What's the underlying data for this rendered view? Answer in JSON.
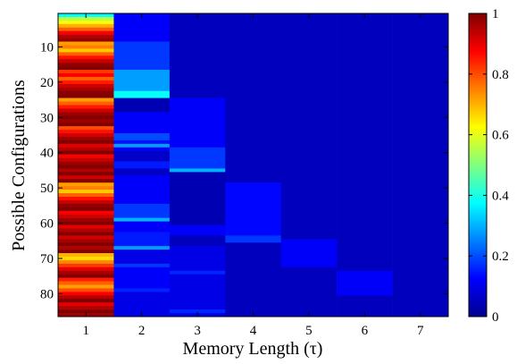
{
  "chart_data": {
    "type": "heatmap",
    "xlabel": "Memory Length (τ)",
    "ylabel": "Possible Configurations",
    "x_categories": [
      "1",
      "2",
      "3",
      "4",
      "5",
      "6",
      "7"
    ],
    "y_ticks": [
      "10",
      "20",
      "30",
      "40",
      "50",
      "60",
      "70",
      "80"
    ],
    "y_tick_values": [
      10,
      20,
      30,
      40,
      50,
      60,
      70,
      80
    ],
    "y_range": [
      0.5,
      86.5
    ],
    "n_rows": 86,
    "colorbar": {
      "range": [
        0,
        1
      ],
      "ticks": [
        "0",
        "0.2",
        "0.4",
        "0.6",
        "0.8",
        "1"
      ],
      "tick_values": [
        0,
        0.2,
        0.4,
        0.6,
        0.8,
        1
      ],
      "colormap": "jet"
    },
    "columns": [
      {
        "x": "1",
        "segments": [
          [
            1,
            1,
            0.38
          ],
          [
            2,
            2,
            0.55
          ],
          [
            3,
            3,
            0.62
          ],
          [
            4,
            4,
            0.7
          ],
          [
            5,
            5,
            0.78
          ],
          [
            6,
            6,
            0.88
          ],
          [
            7,
            7,
            0.95
          ],
          [
            8,
            8,
            0.98
          ],
          [
            9,
            9,
            0.72
          ],
          [
            10,
            10,
            0.75
          ],
          [
            11,
            11,
            0.68
          ],
          [
            12,
            12,
            0.78
          ],
          [
            13,
            13,
            0.86
          ],
          [
            14,
            14,
            0.93
          ],
          [
            15,
            15,
            0.98
          ],
          [
            16,
            16,
            1.0
          ],
          [
            17,
            17,
            0.82
          ],
          [
            18,
            18,
            0.88
          ],
          [
            19,
            19,
            0.78
          ],
          [
            20,
            20,
            0.85
          ],
          [
            21,
            21,
            0.92
          ],
          [
            22,
            22,
            0.96
          ],
          [
            23,
            23,
            0.99
          ],
          [
            24,
            24,
            1.0
          ],
          [
            25,
            25,
            0.72
          ],
          [
            26,
            26,
            0.78
          ],
          [
            27,
            27,
            0.85
          ],
          [
            28,
            28,
            0.92
          ],
          [
            29,
            29,
            0.97
          ],
          [
            30,
            30,
            1.0
          ],
          [
            31,
            31,
            0.97
          ],
          [
            32,
            32,
            1.0
          ],
          [
            33,
            33,
            0.8
          ],
          [
            34,
            34,
            0.86
          ],
          [
            35,
            35,
            0.92
          ],
          [
            36,
            36,
            0.97
          ],
          [
            37,
            37,
            1.0
          ],
          [
            38,
            38,
            0.9
          ],
          [
            39,
            39,
            0.95
          ],
          [
            40,
            40,
            1.0
          ],
          [
            41,
            41,
            0.88
          ],
          [
            42,
            42,
            0.93
          ],
          [
            43,
            43,
            0.97
          ],
          [
            44,
            44,
            1.0
          ],
          [
            45,
            45,
            0.95
          ],
          [
            46,
            46,
            1.0
          ],
          [
            47,
            47,
            0.92
          ],
          [
            48,
            48,
            1.0
          ],
          [
            49,
            49,
            0.72
          ],
          [
            50,
            50,
            0.75
          ],
          [
            51,
            51,
            0.68
          ],
          [
            52,
            52,
            0.78
          ],
          [
            53,
            53,
            0.86
          ],
          [
            54,
            54,
            0.93
          ],
          [
            55,
            55,
            0.98
          ],
          [
            56,
            56,
            1.0
          ],
          [
            57,
            57,
            0.88
          ],
          [
            58,
            58,
            0.92
          ],
          [
            59,
            59,
            0.97
          ],
          [
            60,
            60,
            1.0
          ],
          [
            61,
            61,
            0.9
          ],
          [
            62,
            62,
            0.95
          ],
          [
            63,
            63,
            1.0
          ],
          [
            64,
            64,
            0.92
          ],
          [
            65,
            65,
            0.96
          ],
          [
            66,
            66,
            1.0
          ],
          [
            67,
            67,
            0.95
          ],
          [
            68,
            68,
            1.0
          ],
          [
            69,
            69,
            0.7
          ],
          [
            70,
            70,
            0.66
          ],
          [
            71,
            71,
            0.74
          ],
          [
            72,
            72,
            0.82
          ],
          [
            73,
            73,
            0.9
          ],
          [
            74,
            74,
            0.96
          ],
          [
            75,
            75,
            1.0
          ],
          [
            76,
            76,
            0.85
          ],
          [
            77,
            77,
            0.78
          ],
          [
            78,
            78,
            0.72
          ],
          [
            79,
            79,
            0.8
          ],
          [
            80,
            80,
            0.88
          ],
          [
            81,
            81,
            0.95
          ],
          [
            82,
            82,
            1.0
          ],
          [
            83,
            83,
            0.9
          ],
          [
            84,
            84,
            0.95
          ],
          [
            85,
            85,
            1.0
          ],
          [
            86,
            86,
            0.97
          ]
        ]
      },
      {
        "x": "2",
        "segments": [
          [
            1,
            8,
            0.12
          ],
          [
            9,
            16,
            0.18
          ],
          [
            17,
            22,
            0.28
          ],
          [
            23,
            24,
            0.38
          ],
          [
            25,
            28,
            0.05
          ],
          [
            29,
            34,
            0.12
          ],
          [
            35,
            36,
            0.2
          ],
          [
            37,
            37,
            0.14
          ],
          [
            38,
            38,
            0.28
          ],
          [
            39,
            39,
            0.12
          ],
          [
            40,
            42,
            0.07
          ],
          [
            43,
            44,
            0.15
          ],
          [
            45,
            46,
            0.07
          ],
          [
            47,
            54,
            0.12
          ],
          [
            55,
            58,
            0.18
          ],
          [
            59,
            59,
            0.3
          ],
          [
            60,
            62,
            0.12
          ],
          [
            63,
            66,
            0.15
          ],
          [
            67,
            67,
            0.28
          ],
          [
            68,
            71,
            0.1
          ],
          [
            72,
            72,
            0.18
          ],
          [
            73,
            78,
            0.12
          ],
          [
            79,
            79,
            0.16
          ],
          [
            80,
            86,
            0.1
          ]
        ]
      },
      {
        "x": "3",
        "segments": [
          [
            1,
            24,
            0.06
          ],
          [
            25,
            38,
            0.12
          ],
          [
            39,
            44,
            0.18
          ],
          [
            45,
            45,
            0.3
          ],
          [
            46,
            60,
            0.05
          ],
          [
            61,
            63,
            0.12
          ],
          [
            64,
            66,
            0.06
          ],
          [
            67,
            73,
            0.1
          ],
          [
            74,
            74,
            0.16
          ],
          [
            75,
            84,
            0.1
          ],
          [
            85,
            85,
            0.16
          ],
          [
            86,
            86,
            0.1
          ]
        ]
      },
      {
        "x": "4",
        "segments": [
          [
            1,
            48,
            0.06
          ],
          [
            49,
            63,
            0.13
          ],
          [
            64,
            65,
            0.18
          ],
          [
            66,
            86,
            0.06
          ]
        ]
      },
      {
        "x": "5",
        "segments": [
          [
            1,
            64,
            0.06
          ],
          [
            65,
            72,
            0.12
          ],
          [
            73,
            86,
            0.06
          ]
        ]
      },
      {
        "x": "6",
        "segments": [
          [
            1,
            73,
            0.06
          ],
          [
            74,
            80,
            0.12
          ],
          [
            81,
            86,
            0.06
          ]
        ]
      },
      {
        "x": "7",
        "segments": [
          [
            1,
            86,
            0.06
          ]
        ]
      }
    ]
  }
}
